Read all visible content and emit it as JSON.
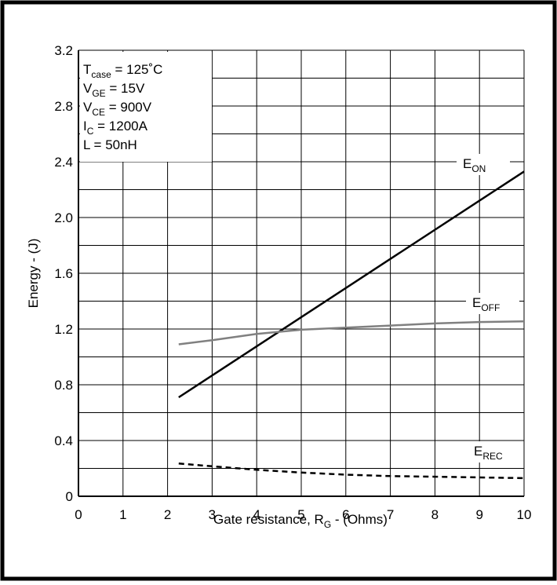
{
  "chart_data": {
    "type": "line",
    "title": "",
    "xlabel": "Gate resistance, R",
    "xlabel_sub": "G",
    "xlabel_suffix": " - (Ohms)",
    "ylabel": "Energy - (J)",
    "xlim": [
      0,
      10
    ],
    "ylim": [
      0,
      3.2
    ],
    "x_ticks": [
      0,
      1,
      2,
      3,
      4,
      5,
      6,
      7,
      8,
      9,
      10
    ],
    "y_ticks": [
      0,
      0.4,
      0.8,
      1.2,
      1.6,
      2.0,
      2.4,
      2.8,
      3.2
    ],
    "x_tick_labels": [
      "0",
      "1",
      "2",
      "3",
      "4",
      "5",
      "6",
      "7",
      "8",
      "9",
      "10"
    ],
    "y_tick_labels": [
      "0",
      "0.4",
      "0.8",
      "1.2",
      "1.6",
      "2.0",
      "2.4",
      "2.8",
      "3.2"
    ],
    "grid": true,
    "conditions": [
      {
        "main": "T",
        "sub": "case",
        "rest": " = 125˚C"
      },
      {
        "main": "V",
        "sub": "GE",
        "rest": " = 15V"
      },
      {
        "main": "V",
        "sub": "CE",
        "rest": " = 900V"
      },
      {
        "main": "I",
        "sub": "C",
        "rest": " = 1200A"
      },
      {
        "main": "L = 50nH",
        "sub": "",
        "rest": ""
      }
    ],
    "series": [
      {
        "name": "E",
        "name_sub": "ON",
        "color": "#000000",
        "dash": "solid",
        "points": [
          [
            2.25,
            0.71
          ],
          [
            10,
            2.33
          ]
        ]
      },
      {
        "name": "E",
        "name_sub": "OFF",
        "color": "#808080",
        "dash": "solid",
        "points": [
          [
            2.25,
            1.09
          ],
          [
            3,
            1.12
          ],
          [
            4,
            1.165
          ],
          [
            5,
            1.195
          ],
          [
            6,
            1.21
          ],
          [
            7,
            1.225
          ],
          [
            8,
            1.24
          ],
          [
            9,
            1.25
          ],
          [
            10,
            1.255
          ]
        ]
      },
      {
        "name": "E",
        "name_sub": "REC",
        "color": "#000000",
        "dash": "dashed",
        "points": [
          [
            2.25,
            0.235
          ],
          [
            3,
            0.215
          ],
          [
            4,
            0.19
          ],
          [
            5,
            0.17
          ],
          [
            6,
            0.155
          ],
          [
            7,
            0.145
          ],
          [
            8,
            0.14
          ],
          [
            9,
            0.135
          ],
          [
            10,
            0.13
          ]
        ]
      }
    ]
  }
}
